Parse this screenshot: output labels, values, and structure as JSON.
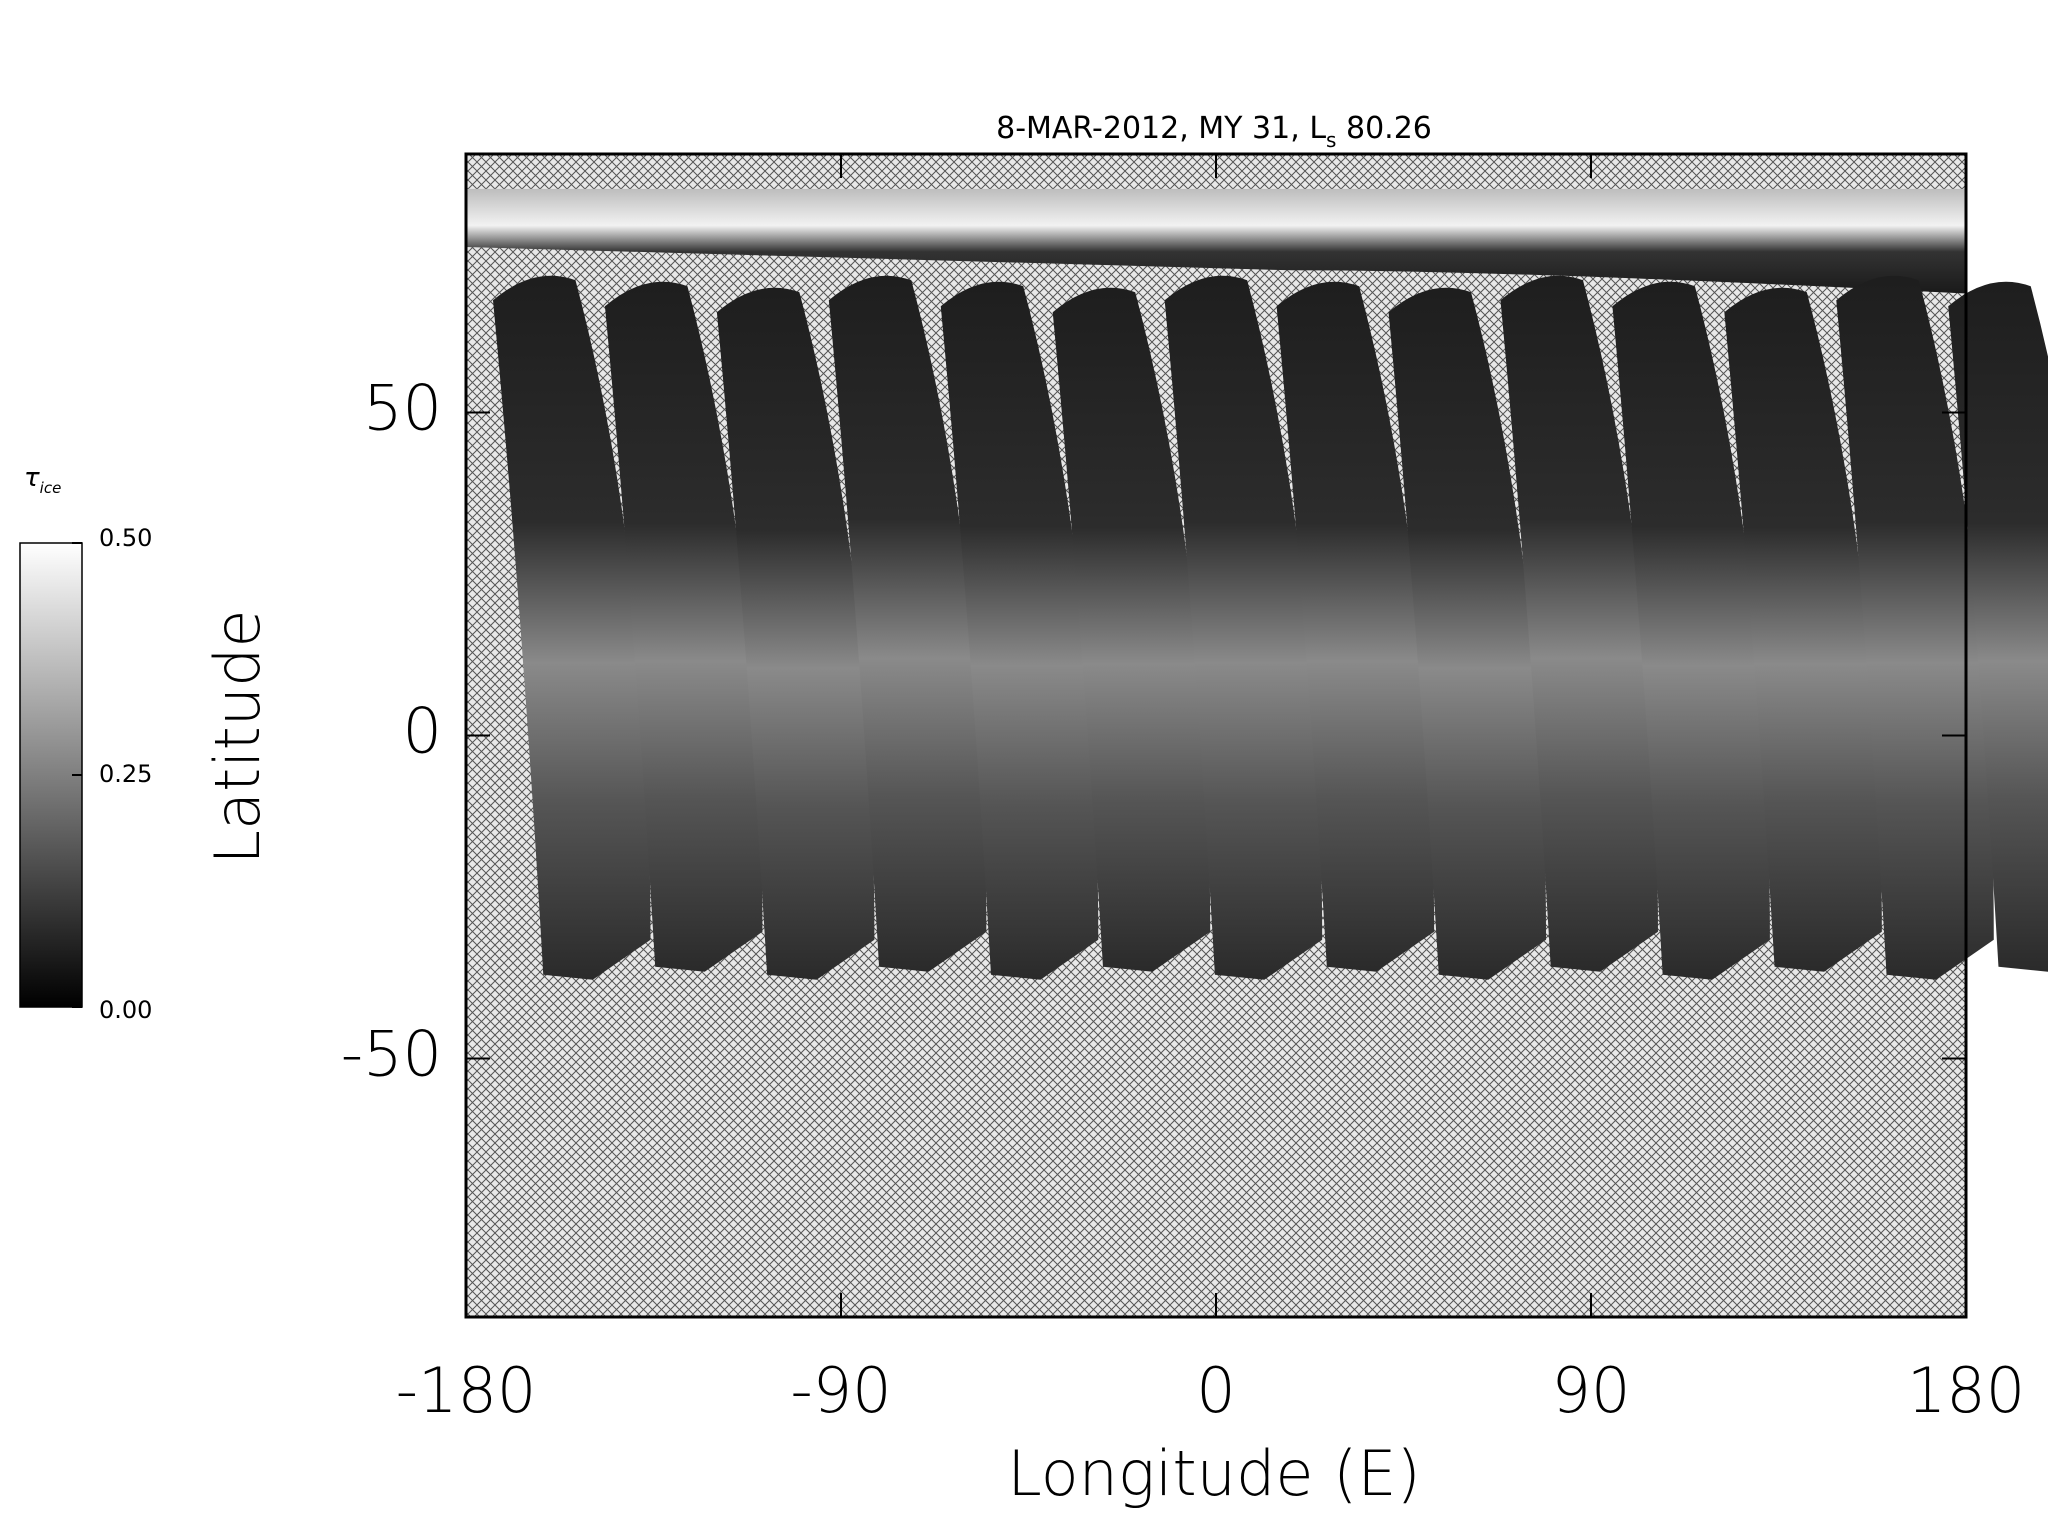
{
  "chart_data": {
    "type": "map",
    "title_parts": [
      "8-MAR-2012, MY 31,",
      "L",
      "s",
      "80.26"
    ],
    "xlabel": "Longitude (E)",
    "ylabel": "Latitude",
    "xlim": [
      -180,
      180
    ],
    "xticks": [
      -180,
      -90,
      0,
      90,
      180
    ],
    "ylim": [
      -90,
      90
    ],
    "yticks": [
      -50,
      0,
      50
    ],
    "colorbar": {
      "label": "τ",
      "label_subscript": "ice",
      "lim": [
        0,
        0.5
      ],
      "ticks": [
        {
          "value": 0,
          "label": "0.00"
        },
        {
          "value": 0.25,
          "label": "0.25"
        },
        {
          "value": 0.5,
          "label": "0.50"
        }
      ],
      "colors": [
        "#000000",
        "#ffffff"
      ]
    }
  }
}
